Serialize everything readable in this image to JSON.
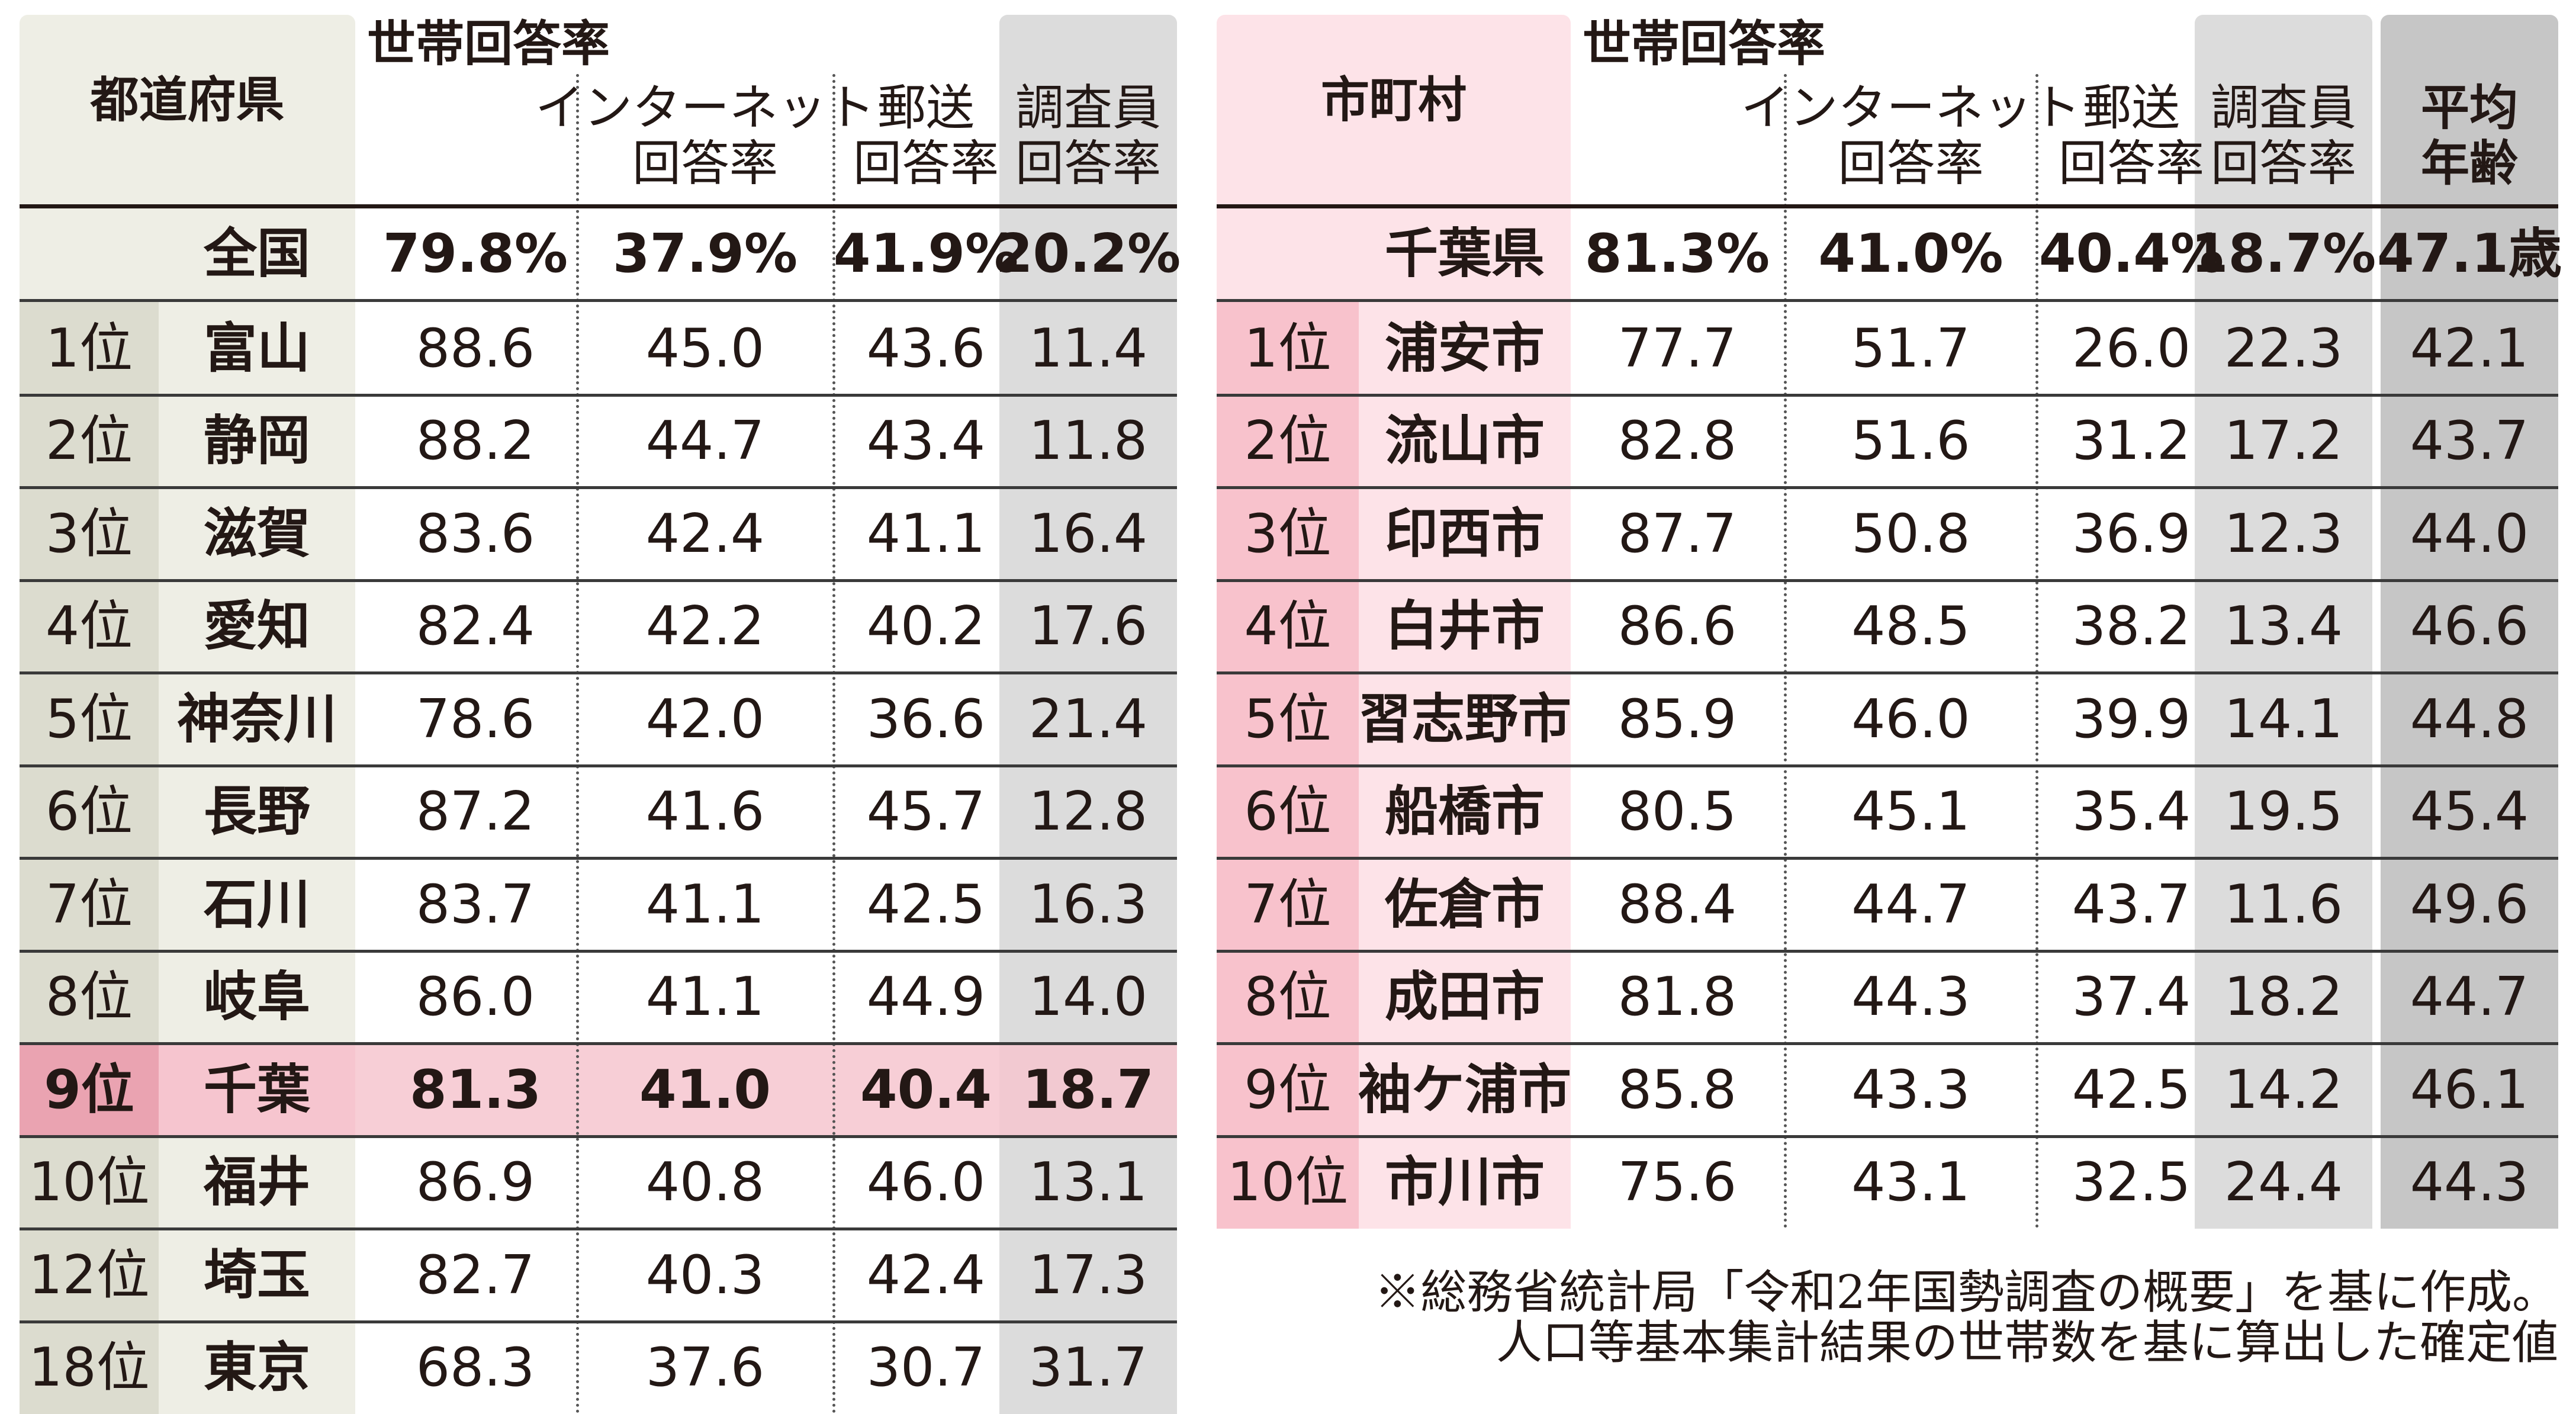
{
  "colors": {
    "pref_header_bg": "#eeeee5",
    "pref_rank_bg": "#dcdccf",
    "chosakin_bg": "#dcdcdc",
    "highlight_bg": "#f6c5cf",
    "highlight_rank_bg": "#eaa3b1",
    "city_header_bg": "#fde3e8",
    "city_rank_bg": "#f8c2cc",
    "age_bg": "#c6c6c6"
  },
  "prefecture_table": {
    "header_main": "世帯回答率",
    "col_name": "都道府県",
    "col_internet": [
      "インターネット",
      "回答率"
    ],
    "col_mail": [
      "郵送",
      "回答率"
    ],
    "col_surveyor": [
      "調査員",
      "回答率"
    ],
    "national": {
      "label": "全国",
      "total": "79.8%",
      "internet": "37.9%",
      "mail": "41.9%",
      "surveyor": "20.2%"
    },
    "rows": [
      {
        "rank": "1位",
        "name": "富山",
        "total": "88.6",
        "internet": "45.0",
        "mail": "43.6",
        "surveyor": "11.4"
      },
      {
        "rank": "2位",
        "name": "静岡",
        "total": "88.2",
        "internet": "44.7",
        "mail": "43.4",
        "surveyor": "11.8"
      },
      {
        "rank": "3位",
        "name": "滋賀",
        "total": "83.6",
        "internet": "42.4",
        "mail": "41.1",
        "surveyor": "16.4"
      },
      {
        "rank": "4位",
        "name": "愛知",
        "total": "82.4",
        "internet": "42.2",
        "mail": "40.2",
        "surveyor": "17.6"
      },
      {
        "rank": "5位",
        "name": "神奈川",
        "total": "78.6",
        "internet": "42.0",
        "mail": "36.6",
        "surveyor": "21.4"
      },
      {
        "rank": "6位",
        "name": "長野",
        "total": "87.2",
        "internet": "41.6",
        "mail": "45.7",
        "surveyor": "12.8"
      },
      {
        "rank": "7位",
        "name": "石川",
        "total": "83.7",
        "internet": "41.1",
        "mail": "42.5",
        "surveyor": "16.3"
      },
      {
        "rank": "8位",
        "name": "岐阜",
        "total": "86.0",
        "internet": "41.1",
        "mail": "44.9",
        "surveyor": "14.0"
      },
      {
        "rank": "9位",
        "name": "千葉",
        "total": "81.3",
        "internet": "41.0",
        "mail": "40.4",
        "surveyor": "18.7"
      },
      {
        "rank": "10位",
        "name": "福井",
        "total": "86.9",
        "internet": "40.8",
        "mail": "46.0",
        "surveyor": "13.1"
      },
      {
        "rank": "12位",
        "name": "埼玉",
        "total": "82.7",
        "internet": "40.3",
        "mail": "42.4",
        "surveyor": "17.3"
      },
      {
        "rank": "18位",
        "name": "東京",
        "total": "68.3",
        "internet": "37.6",
        "mail": "30.7",
        "surveyor": "31.7"
      }
    ]
  },
  "city_table": {
    "header_main": "世帯回答率",
    "col_name": "市町村",
    "col_internet": [
      "インターネット",
      "回答率"
    ],
    "col_mail": [
      "郵送",
      "回答率"
    ],
    "col_surveyor": [
      "調査員",
      "回答率"
    ],
    "col_age": [
      "平均",
      "年齢"
    ],
    "prefecture": {
      "label": "千葉県",
      "total": "81.3%",
      "internet": "41.0%",
      "mail": "40.4%",
      "surveyor": "18.7%",
      "age": "47.1歳"
    },
    "rows": [
      {
        "rank": "1位",
        "name": "浦安市",
        "total": "77.7",
        "internet": "51.7",
        "mail": "26.0",
        "surveyor": "22.3",
        "age": "42.1"
      },
      {
        "rank": "2位",
        "name": "流山市",
        "total": "82.8",
        "internet": "51.6",
        "mail": "31.2",
        "surveyor": "17.2",
        "age": "43.7"
      },
      {
        "rank": "3位",
        "name": "印西市",
        "total": "87.7",
        "internet": "50.8",
        "mail": "36.9",
        "surveyor": "12.3",
        "age": "44.0"
      },
      {
        "rank": "4位",
        "name": "白井市",
        "total": "86.6",
        "internet": "48.5",
        "mail": "38.2",
        "surveyor": "13.4",
        "age": "46.6"
      },
      {
        "rank": "5位",
        "name": "習志野市",
        "total": "85.9",
        "internet": "46.0",
        "mail": "39.9",
        "surveyor": "14.1",
        "age": "44.8"
      },
      {
        "rank": "6位",
        "name": "船橋市",
        "total": "80.5",
        "internet": "45.1",
        "mail": "35.4",
        "surveyor": "19.5",
        "age": "45.4"
      },
      {
        "rank": "7位",
        "name": "佐倉市",
        "total": "88.4",
        "internet": "44.7",
        "mail": "43.7",
        "surveyor": "11.6",
        "age": "49.6"
      },
      {
        "rank": "8位",
        "name": "成田市",
        "total": "81.8",
        "internet": "44.3",
        "mail": "37.4",
        "surveyor": "18.2",
        "age": "44.7"
      },
      {
        "rank": "9位",
        "name": "袖ケ浦市",
        "total": "85.8",
        "internet": "43.3",
        "mail": "42.5",
        "surveyor": "14.2",
        "age": "46.1"
      },
      {
        "rank": "10位",
        "name": "市川市",
        "total": "75.6",
        "internet": "43.1",
        "mail": "32.5",
        "surveyor": "24.4",
        "age": "44.3"
      }
    ]
  },
  "source_note": [
    "※総務省統計局「令和2年国勢調査の概要」を基に作成。",
    "人口等基本集計結果の世帯数を基に算出した確定値"
  ]
}
